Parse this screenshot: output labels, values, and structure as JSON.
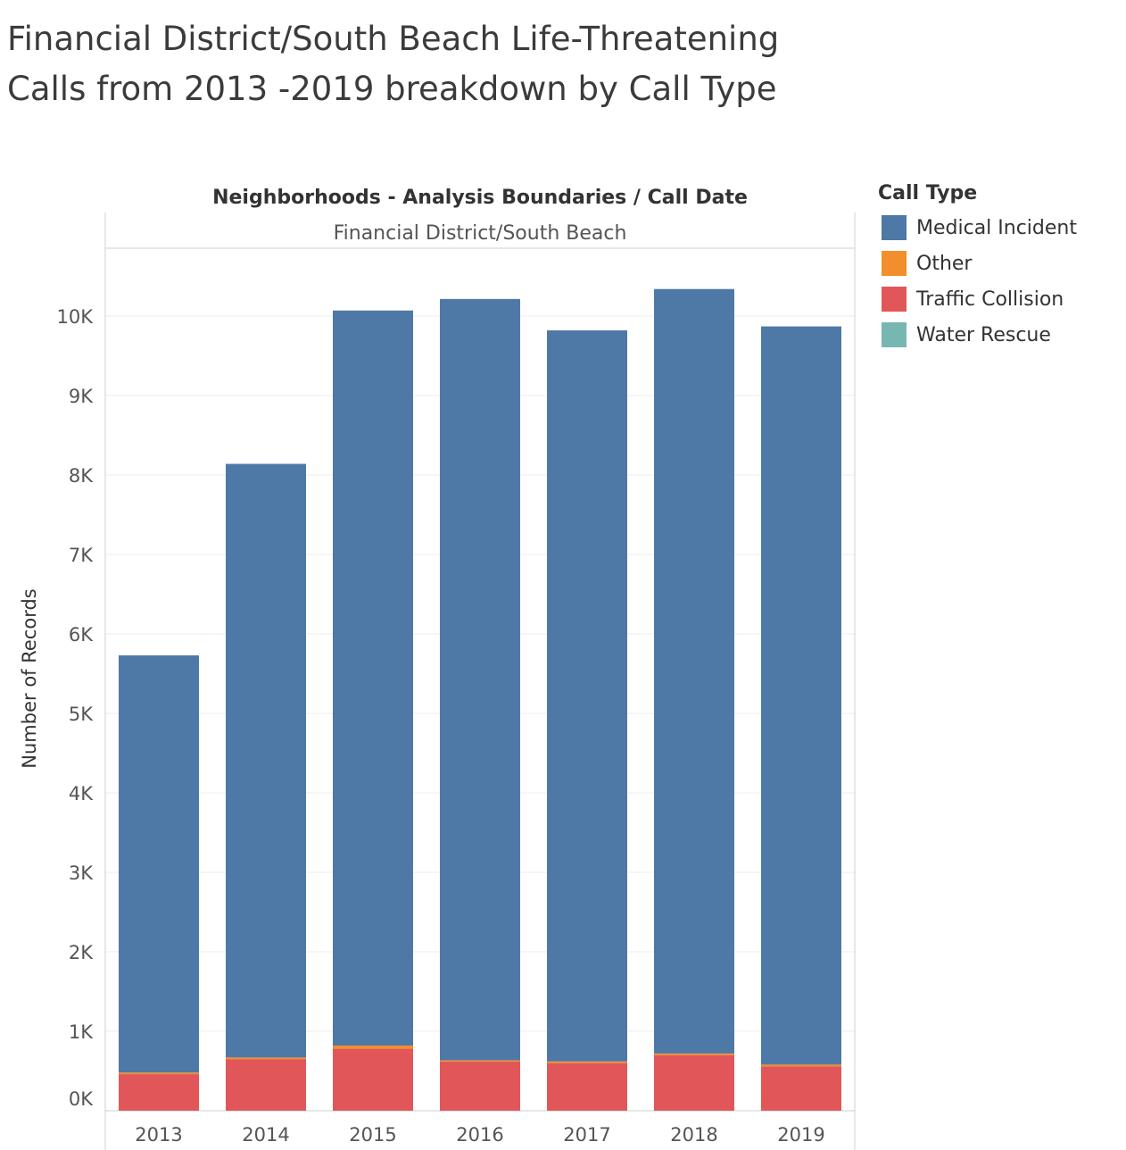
{
  "title_lines": [
    "Financial District/South Beach Life-Threatening",
    "Calls from 2013 -2019  breakdown by Call Type"
  ],
  "header": "Neighborhoods - Analysis Boundaries  /  Call Date",
  "panel_label": "Financial District/South Beach",
  "legend": {
    "title": "Call Type",
    "items": [
      {
        "label": "Medical Incident",
        "color": "#4e79a7"
      },
      {
        "label": "Other",
        "color": "#f28e2b"
      },
      {
        "label": "Traffic Collision",
        "color": "#e15759"
      },
      {
        "label": "Water Rescue",
        "color": "#76b7b2"
      }
    ]
  },
  "chart_data": {
    "type": "bar",
    "stacked": true,
    "categories": [
      "2013",
      "2014",
      "2015",
      "2016",
      "2017",
      "2018",
      "2019"
    ],
    "series": [
      {
        "name": "Traffic Collision",
        "color": "#e15759",
        "values": [
          460,
          650,
          780,
          620,
          600,
          700,
          560
        ]
      },
      {
        "name": "Other",
        "color": "#f28e2b",
        "values": [
          20,
          20,
          40,
          15,
          20,
          20,
          20
        ]
      },
      {
        "name": "Water Rescue",
        "color": "#76b7b2",
        "values": [
          0,
          0,
          0,
          0,
          0,
          0,
          0
        ]
      },
      {
        "name": "Medical Incident",
        "color": "#4e79a7",
        "values": [
          5250,
          7470,
          9250,
          9580,
          9200,
          9620,
          9290
        ]
      }
    ],
    "ylabel": "Number of Records",
    "xlabel": "",
    "ylim": [
      0,
      10800
    ],
    "yticks": [
      0,
      1000,
      2000,
      3000,
      4000,
      5000,
      6000,
      7000,
      8000,
      9000,
      10000
    ],
    "ytick_labels": [
      "0K",
      "1K",
      "2K",
      "3K",
      "4K",
      "5K",
      "6K",
      "7K",
      "8K",
      "9K",
      "10K"
    ],
    "grid": true,
    "legend_position": "right"
  }
}
